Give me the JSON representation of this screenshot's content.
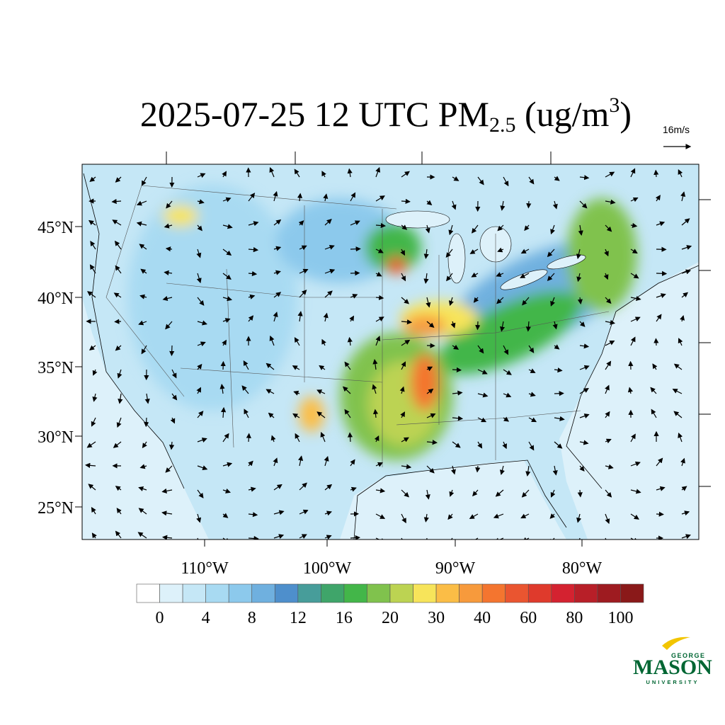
{
  "title": {
    "main": "2025-07-25 12 UTC PM",
    "sub": "2.5",
    "unit": " (ug/m",
    "sup": "3",
    "close": ")"
  },
  "vector_reference": "16m/s",
  "lat_labels": [
    "45°N",
    "40°N",
    "35°N",
    "30°N",
    "25°N"
  ],
  "lon_labels": [
    "110°W",
    "100°W",
    "90°W",
    "80°W"
  ],
  "colorbar": {
    "colors": [
      "#ffffff",
      "#ddf1fa",
      "#c5e7f6",
      "#a8daf2",
      "#8cc9ec",
      "#6fb0df",
      "#4e8fcc",
      "#479d9a",
      "#3fa56a",
      "#43b649",
      "#80c24d",
      "#bcd352",
      "#f7e45a",
      "#fbbd46",
      "#f79a3c",
      "#f4752f",
      "#ea5530",
      "#df3a2c",
      "#d42230",
      "#b81f28",
      "#9e1b20",
      "#8a1919"
    ],
    "labels": [
      0,
      4,
      8,
      12,
      16,
      20,
      30,
      40,
      60,
      80,
      100
    ]
  },
  "logo": {
    "top": "GEORGE",
    "name": "MASON",
    "bottom": "UNIVERSITY"
  }
}
